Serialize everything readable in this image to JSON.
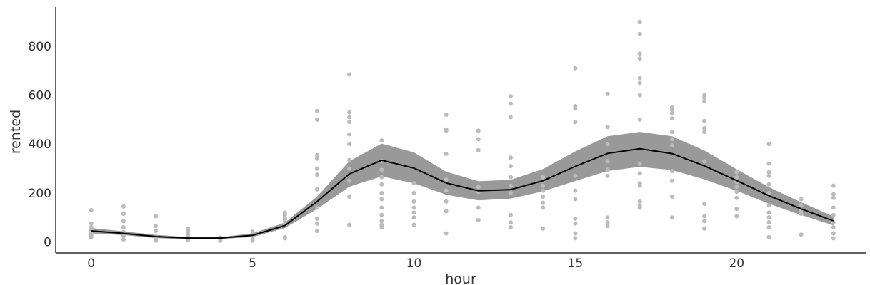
{
  "chart_data": {
    "type": "line",
    "xlabel": "hour",
    "ylabel": "rented",
    "xlim": [
      -1.1,
      24.0
    ],
    "ylim": [
      -45,
      960
    ],
    "xticks": [
      0,
      5,
      10,
      15,
      20
    ],
    "yticks": [
      0,
      200,
      400,
      600,
      800
    ],
    "grid": false,
    "colors": {
      "band": "#999999",
      "mean_line": "#000000",
      "points": "#bbbbbb",
      "axis": "#000000"
    },
    "series": [
      {
        "kind": "mean",
        "x": [
          0,
          1,
          2,
          3,
          4,
          5,
          6,
          7,
          8,
          9,
          10,
          11,
          12,
          13,
          14,
          15,
          16,
          17,
          18,
          19,
          20,
          21,
          22,
          23
        ],
        "values": [
          45,
          35,
          22,
          16,
          16,
          27,
          67,
          165,
          278,
          334,
          302,
          241,
          209,
          214,
          250,
          309,
          362,
          381,
          361,
          311,
          251,
          189,
          135,
          86
        ]
      },
      {
        "kind": "interval",
        "x": [
          0,
          1,
          2,
          3,
          4,
          5,
          6,
          7,
          8,
          9,
          10,
          11,
          12,
          13,
          14,
          15,
          16,
          17,
          18,
          19,
          20,
          21,
          22,
          23
        ],
        "lower": [
          35,
          28,
          16,
          11,
          12,
          20,
          57,
          135,
          226,
          268,
          240,
          193,
          170,
          177,
          207,
          249,
          290,
          307,
          294,
          256,
          209,
          156,
          110,
          68
        ],
        "upper": [
          57,
          43,
          29,
          20,
          20,
          35,
          79,
          186,
          330,
          402,
          366,
          287,
          248,
          254,
          298,
          370,
          432,
          450,
          432,
          374,
          297,
          224,
          162,
          104
        ]
      },
      {
        "kind": "observations",
        "points": [
          [
            0,
            130
          ],
          [
            0,
            75
          ],
          [
            0,
            60
          ],
          [
            0,
            50
          ],
          [
            0,
            42
          ],
          [
            0,
            35
          ],
          [
            0,
            28
          ],
          [
            0,
            20
          ],
          [
            1,
            145
          ],
          [
            1,
            115
          ],
          [
            1,
            85
          ],
          [
            1,
            60
          ],
          [
            1,
            40
          ],
          [
            1,
            25
          ],
          [
            1,
            10
          ],
          [
            2,
            105
          ],
          [
            2,
            65
          ],
          [
            2,
            45
          ],
          [
            2,
            25
          ],
          [
            2,
            12
          ],
          [
            2,
            5
          ],
          [
            3,
            55
          ],
          [
            3,
            45
          ],
          [
            3,
            35
          ],
          [
            3,
            25
          ],
          [
            3,
            15
          ],
          [
            3,
            8
          ],
          [
            4,
            18
          ],
          [
            4,
            10
          ],
          [
            4,
            5
          ],
          [
            5,
            42
          ],
          [
            5,
            32
          ],
          [
            5,
            22
          ],
          [
            5,
            12
          ],
          [
            5,
            5
          ],
          [
            6,
            120
          ],
          [
            6,
            110
          ],
          [
            6,
            100
          ],
          [
            6,
            92
          ],
          [
            6,
            82
          ],
          [
            6,
            72
          ],
          [
            6,
            20
          ],
          [
            6,
            15
          ],
          [
            7,
            535
          ],
          [
            7,
            500
          ],
          [
            7,
            355
          ],
          [
            7,
            340
          ],
          [
            7,
            300
          ],
          [
            7,
            275
          ],
          [
            7,
            215
          ],
          [
            7,
            140
          ],
          [
            7,
            95
          ],
          [
            7,
            75
          ],
          [
            7,
            45
          ],
          [
            8,
            685
          ],
          [
            8,
            530
          ],
          [
            8,
            510
          ],
          [
            8,
            490
          ],
          [
            8,
            440
          ],
          [
            8,
            400
          ],
          [
            8,
            335
          ],
          [
            8,
            300
          ],
          [
            8,
            250
          ],
          [
            8,
            185
          ],
          [
            8,
            70
          ],
          [
            9,
            415
          ],
          [
            9,
            330
          ],
          [
            9,
            295
          ],
          [
            9,
            265
          ],
          [
            9,
            235
          ],
          [
            9,
            200
          ],
          [
            9,
            175
          ],
          [
            9,
            140
          ],
          [
            9,
            110
          ],
          [
            9,
            85
          ],
          [
            9,
            70
          ],
          [
            9,
            60
          ],
          [
            10,
            240
          ],
          [
            10,
            200
          ],
          [
            10,
            165
          ],
          [
            10,
            140
          ],
          [
            10,
            120
          ],
          [
            10,
            100
          ],
          [
            10,
            70
          ],
          [
            11,
            520
          ],
          [
            11,
            460
          ],
          [
            11,
            455
          ],
          [
            11,
            360
          ],
          [
            11,
            255
          ],
          [
            11,
            210
          ],
          [
            11,
            165
          ],
          [
            11,
            125
          ],
          [
            11,
            35
          ],
          [
            12,
            455
          ],
          [
            12,
            420
          ],
          [
            12,
            375
          ],
          [
            12,
            225
          ],
          [
            12,
            205
          ],
          [
            12,
            140
          ],
          [
            12,
            90
          ],
          [
            13,
            595
          ],
          [
            13,
            565
          ],
          [
            13,
            510
          ],
          [
            13,
            345
          ],
          [
            13,
            310
          ],
          [
            13,
            265
          ],
          [
            13,
            230
          ],
          [
            13,
            200
          ],
          [
            13,
            110
          ],
          [
            13,
            80
          ],
          [
            13,
            60
          ],
          [
            14,
            265
          ],
          [
            14,
            250
          ],
          [
            14,
            230
          ],
          [
            14,
            210
          ],
          [
            14,
            185
          ],
          [
            14,
            160
          ],
          [
            14,
            140
          ],
          [
            14,
            55
          ],
          [
            15,
            710
          ],
          [
            15,
            555
          ],
          [
            15,
            545
          ],
          [
            15,
            490
          ],
          [
            15,
            270
          ],
          [
            15,
            210
          ],
          [
            15,
            175
          ],
          [
            15,
            95
          ],
          [
            15,
            75
          ],
          [
            15,
            35
          ],
          [
            15,
            15
          ],
          [
            16,
            605
          ],
          [
            16,
            470
          ],
          [
            16,
            400
          ],
          [
            16,
            330
          ],
          [
            16,
            295
          ],
          [
            16,
            270
          ],
          [
            16,
            100
          ],
          [
            16,
            80
          ],
          [
            16,
            65
          ],
          [
            17,
            900
          ],
          [
            17,
            850
          ],
          [
            17,
            770
          ],
          [
            17,
            750
          ],
          [
            17,
            670
          ],
          [
            17,
            650
          ],
          [
            17,
            600
          ],
          [
            17,
            500
          ],
          [
            17,
            320
          ],
          [
            17,
            280
          ],
          [
            17,
            240
          ],
          [
            17,
            230
          ],
          [
            17,
            165
          ],
          [
            17,
            150
          ],
          [
            17,
            140
          ],
          [
            18,
            550
          ],
          [
            18,
            540
          ],
          [
            18,
            525
          ],
          [
            18,
            505
          ],
          [
            18,
            450
          ],
          [
            18,
            420
          ],
          [
            18,
            395
          ],
          [
            18,
            290
          ],
          [
            18,
            250
          ],
          [
            18,
            185
          ],
          [
            18,
            100
          ],
          [
            19,
            600
          ],
          [
            19,
            590
          ],
          [
            19,
            575
          ],
          [
            19,
            495
          ],
          [
            19,
            465
          ],
          [
            19,
            450
          ],
          [
            19,
            330
          ],
          [
            19,
            155
          ],
          [
            19,
            105
          ],
          [
            19,
            85
          ],
          [
            19,
            55
          ],
          [
            20,
            285
          ],
          [
            20,
            265
          ],
          [
            20,
            245
          ],
          [
            20,
            225
          ],
          [
            20,
            205
          ],
          [
            20,
            180
          ],
          [
            20,
            135
          ],
          [
            20,
            105
          ],
          [
            21,
            400
          ],
          [
            21,
            320
          ],
          [
            21,
            285
          ],
          [
            21,
            270
          ],
          [
            21,
            235
          ],
          [
            21,
            200
          ],
          [
            21,
            150
          ],
          [
            21,
            120
          ],
          [
            21,
            100
          ],
          [
            21,
            80
          ],
          [
            21,
            60
          ],
          [
            21,
            20
          ],
          [
            22,
            175
          ],
          [
            22,
            150
          ],
          [
            22,
            130
          ],
          [
            22,
            115
          ],
          [
            22,
            30
          ],
          [
            23,
            230
          ],
          [
            23,
            195
          ],
          [
            23,
            180
          ],
          [
            23,
            140
          ],
          [
            23,
            110
          ],
          [
            23,
            80
          ],
          [
            23,
            60
          ],
          [
            23,
            35
          ],
          [
            23,
            15
          ]
        ]
      }
    ]
  }
}
